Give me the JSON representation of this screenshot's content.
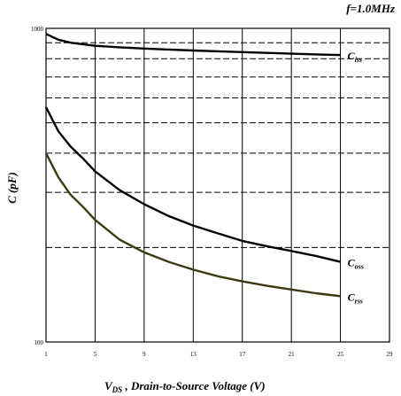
{
  "chart_data": {
    "type": "line",
    "annotation": "f=1.0MHz",
    "xlabel": {
      "main": "V",
      "sub": "DS",
      "rest": " , Drain-to-Source Voltage (V)"
    },
    "ylabel": "C (pF)",
    "xlim": [
      1,
      29
    ],
    "x_ticks": [
      "1",
      "5",
      "9",
      "13",
      "17",
      "21",
      "25",
      "29"
    ],
    "y_scale": "log",
    "ylim": [
      100,
      1000
    ],
    "y_tick_labels": [
      "1000",
      "100"
    ],
    "grid": true,
    "series": [
      {
        "name": "C",
        "sub": "iss",
        "color": "#000000",
        "x": [
          1,
          2,
          3,
          5,
          7,
          9,
          11,
          13,
          15,
          17,
          19,
          21,
          23,
          25
        ],
        "y": [
          960,
          920,
          900,
          880,
          870,
          862,
          856,
          850,
          845,
          840,
          835,
          830,
          826,
          822
        ]
      },
      {
        "name": "C",
        "sub": "oss",
        "color": "#000000",
        "x": [
          1,
          2,
          3,
          4,
          5,
          7,
          9,
          11,
          13,
          15,
          17,
          19,
          21,
          23,
          25
        ],
        "y": [
          560,
          470,
          420,
          385,
          350,
          305,
          275,
          252,
          235,
          222,
          210,
          202,
          195,
          188,
          180
        ]
      },
      {
        "name": "C",
        "sub": "rss",
        "color": "#3d3a12",
        "x": [
          1,
          2,
          3,
          4,
          5,
          7,
          9,
          11,
          13,
          15,
          17,
          19,
          21,
          23,
          25
        ],
        "y": [
          400,
          335,
          295,
          270,
          245,
          212,
          193,
          180,
          170,
          162,
          156,
          151,
          147,
          143,
          140
        ]
      }
    ]
  }
}
